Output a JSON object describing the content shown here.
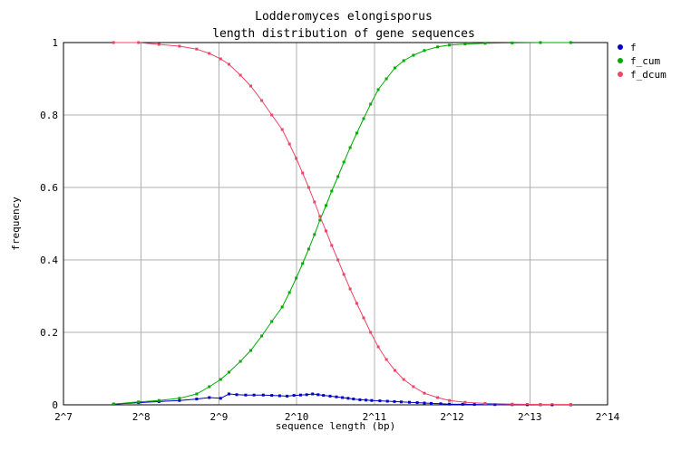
{
  "chart_data": {
    "type": "line",
    "title": [
      "Lodderomyces elongisporus",
      "length distribution of gene sequences"
    ],
    "xlabel": "sequence length (bp)",
    "ylabel": "frequency",
    "x_scale": "log2",
    "xlim": [
      128,
      16384
    ],
    "ylim": [
      0,
      1
    ],
    "x_ticks": [
      "2^7",
      "2^8",
      "2^9",
      "2^10",
      "2^11",
      "2^12",
      "2^13",
      "2^14"
    ],
    "y_ticks": [
      "0",
      "0.2",
      "0.4",
      "0.6",
      "0.8",
      "1"
    ],
    "grid": true,
    "legend_position": "top-right",
    "series": [
      {
        "name": "f",
        "color": "#0000cc",
        "points": [
          [
            200,
            0.002
          ],
          [
            250,
            0.006
          ],
          [
            300,
            0.009
          ],
          [
            360,
            0.012
          ],
          [
            420,
            0.016
          ],
          [
            470,
            0.02
          ],
          [
            520,
            0.018
          ],
          [
            560,
            0.03
          ],
          [
            600,
            0.028
          ],
          [
            650,
            0.027
          ],
          [
            700,
            0.027
          ],
          [
            760,
            0.027
          ],
          [
            820,
            0.026
          ],
          [
            880,
            0.025
          ],
          [
            940,
            0.024
          ],
          [
            1000,
            0.026
          ],
          [
            1060,
            0.027
          ],
          [
            1120,
            0.028
          ],
          [
            1180,
            0.03
          ],
          [
            1240,
            0.028
          ],
          [
            1300,
            0.026
          ],
          [
            1380,
            0.024
          ],
          [
            1460,
            0.022
          ],
          [
            1540,
            0.02
          ],
          [
            1620,
            0.018
          ],
          [
            1700,
            0.016
          ],
          [
            1800,
            0.014
          ],
          [
            1900,
            0.013
          ],
          [
            2000,
            0.012
          ],
          [
            2150,
            0.011
          ],
          [
            2300,
            0.01
          ],
          [
            2450,
            0.009
          ],
          [
            2600,
            0.008
          ],
          [
            2800,
            0.007
          ],
          [
            3000,
            0.006
          ],
          [
            3200,
            0.005
          ],
          [
            3400,
            0.004
          ],
          [
            3700,
            0.003
          ],
          [
            4000,
            0.002
          ],
          [
            4500,
            0.0015
          ],
          [
            5000,
            0.001
          ],
          [
            6000,
            0.0008
          ],
          [
            7000,
            0.0005
          ],
          [
            8000,
            0.0003
          ],
          [
            9000,
            0.0002
          ],
          [
            10000,
            0.0001
          ],
          [
            11800,
            0.0001
          ]
        ]
      },
      {
        "name": "f_cum",
        "color": "#00aa00",
        "points": [
          [
            200,
            0.002
          ],
          [
            250,
            0.008
          ],
          [
            300,
            0.012
          ],
          [
            360,
            0.018
          ],
          [
            420,
            0.03
          ],
          [
            470,
            0.05
          ],
          [
            520,
            0.07
          ],
          [
            560,
            0.09
          ],
          [
            620,
            0.12
          ],
          [
            680,
            0.15
          ],
          [
            750,
            0.19
          ],
          [
            820,
            0.23
          ],
          [
            900,
            0.27
          ],
          [
            960,
            0.31
          ],
          [
            1020,
            0.35
          ],
          [
            1080,
            0.39
          ],
          [
            1140,
            0.43
          ],
          [
            1200,
            0.47
          ],
          [
            1260,
            0.51
          ],
          [
            1330,
            0.55
          ],
          [
            1400,
            0.59
          ],
          [
            1480,
            0.63
          ],
          [
            1560,
            0.67
          ],
          [
            1650,
            0.71
          ],
          [
            1750,
            0.75
          ],
          [
            1860,
            0.79
          ],
          [
            1980,
            0.83
          ],
          [
            2120,
            0.87
          ],
          [
            2280,
            0.9
          ],
          [
            2460,
            0.93
          ],
          [
            2660,
            0.95
          ],
          [
            2900,
            0.965
          ],
          [
            3200,
            0.978
          ],
          [
            3600,
            0.988
          ],
          [
            4000,
            0.993
          ],
          [
            4600,
            0.996
          ],
          [
            5500,
            0.998
          ],
          [
            7000,
            0.999
          ],
          [
            9000,
            1.0
          ],
          [
            11800,
            1.0
          ]
        ]
      },
      {
        "name": "f_dcum",
        "color": "#ee4466",
        "points": [
          [
            200,
            1.0
          ],
          [
            250,
            1.0
          ],
          [
            300,
            0.995
          ],
          [
            360,
            0.99
          ],
          [
            420,
            0.982
          ],
          [
            470,
            0.97
          ],
          [
            520,
            0.955
          ],
          [
            560,
            0.94
          ],
          [
            620,
            0.91
          ],
          [
            680,
            0.88
          ],
          [
            750,
            0.84
          ],
          [
            820,
            0.8
          ],
          [
            900,
            0.76
          ],
          [
            960,
            0.72
          ],
          [
            1020,
            0.68
          ],
          [
            1080,
            0.64
          ],
          [
            1140,
            0.6
          ],
          [
            1200,
            0.56
          ],
          [
            1260,
            0.52
          ],
          [
            1330,
            0.48
          ],
          [
            1400,
            0.44
          ],
          [
            1480,
            0.4
          ],
          [
            1560,
            0.36
          ],
          [
            1650,
            0.32
          ],
          [
            1750,
            0.28
          ],
          [
            1860,
            0.24
          ],
          [
            1980,
            0.2
          ],
          [
            2120,
            0.16
          ],
          [
            2280,
            0.125
          ],
          [
            2460,
            0.095
          ],
          [
            2660,
            0.07
          ],
          [
            2900,
            0.05
          ],
          [
            3200,
            0.032
          ],
          [
            3600,
            0.02
          ],
          [
            4000,
            0.012
          ],
          [
            4600,
            0.007
          ],
          [
            5500,
            0.004
          ],
          [
            7000,
            0.002
          ],
          [
            9000,
            0.001
          ],
          [
            11800,
            0.001
          ]
        ]
      }
    ]
  }
}
